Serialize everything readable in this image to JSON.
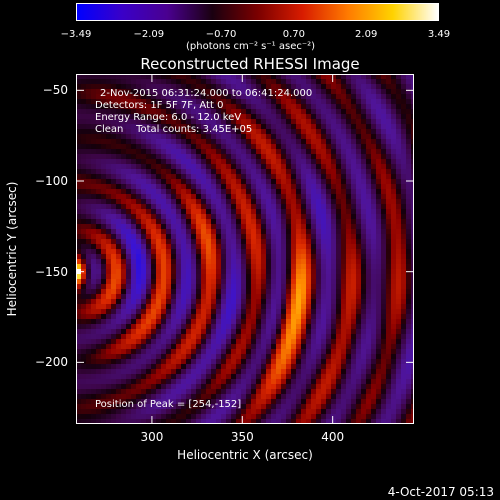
{
  "colorbar": {
    "ticks": [
      "−3.49",
      "−2.09",
      "−0.70",
      "0.70",
      "2.09",
      "3.49"
    ],
    "tick_values": [
      -3.49,
      -2.09,
      -0.7,
      0.7,
      2.09,
      3.49
    ],
    "units": "(photons cm⁻² s⁻¹ asec⁻²)",
    "colors": [
      "#0000ff",
      "#3a00c8",
      "#4a0090",
      "#1a0010",
      "#7a0000",
      "#d81c00",
      "#ff7a00",
      "#ffd200",
      "#ffffff"
    ]
  },
  "plot": {
    "title": "Reconstructed RHESSI Image",
    "info_lines": [
      "2-Nov-2015 06:31:24.000 to 06:41:24.000",
      "Detectors: 1F 5F 7F, Att 0",
      "Energy Range: 6.0 - 12.0 keV",
      "Clean    Total counts: 3.45E+05"
    ],
    "peak_label": "Position of Peak = [254,-152]",
    "xlabel": "Heliocentric X (arcsec)",
    "ylabel": "Heliocentric Y (arcsec)",
    "xlim": [
      258,
      445
    ],
    "ylim": [
      -234,
      -41
    ],
    "x_ticks": [
      "300",
      "350",
      "400"
    ],
    "x_tick_values": [
      300,
      350,
      400
    ],
    "y_ticks": [
      "−50",
      "−100",
      "−150",
      "−200"
    ],
    "y_tick_values": [
      -50,
      -100,
      -150,
      -200
    ],
    "peak": [
      254,
      -152
    ]
  },
  "footer": {
    "timestamp": "4-Oct-2017 05:13"
  }
}
